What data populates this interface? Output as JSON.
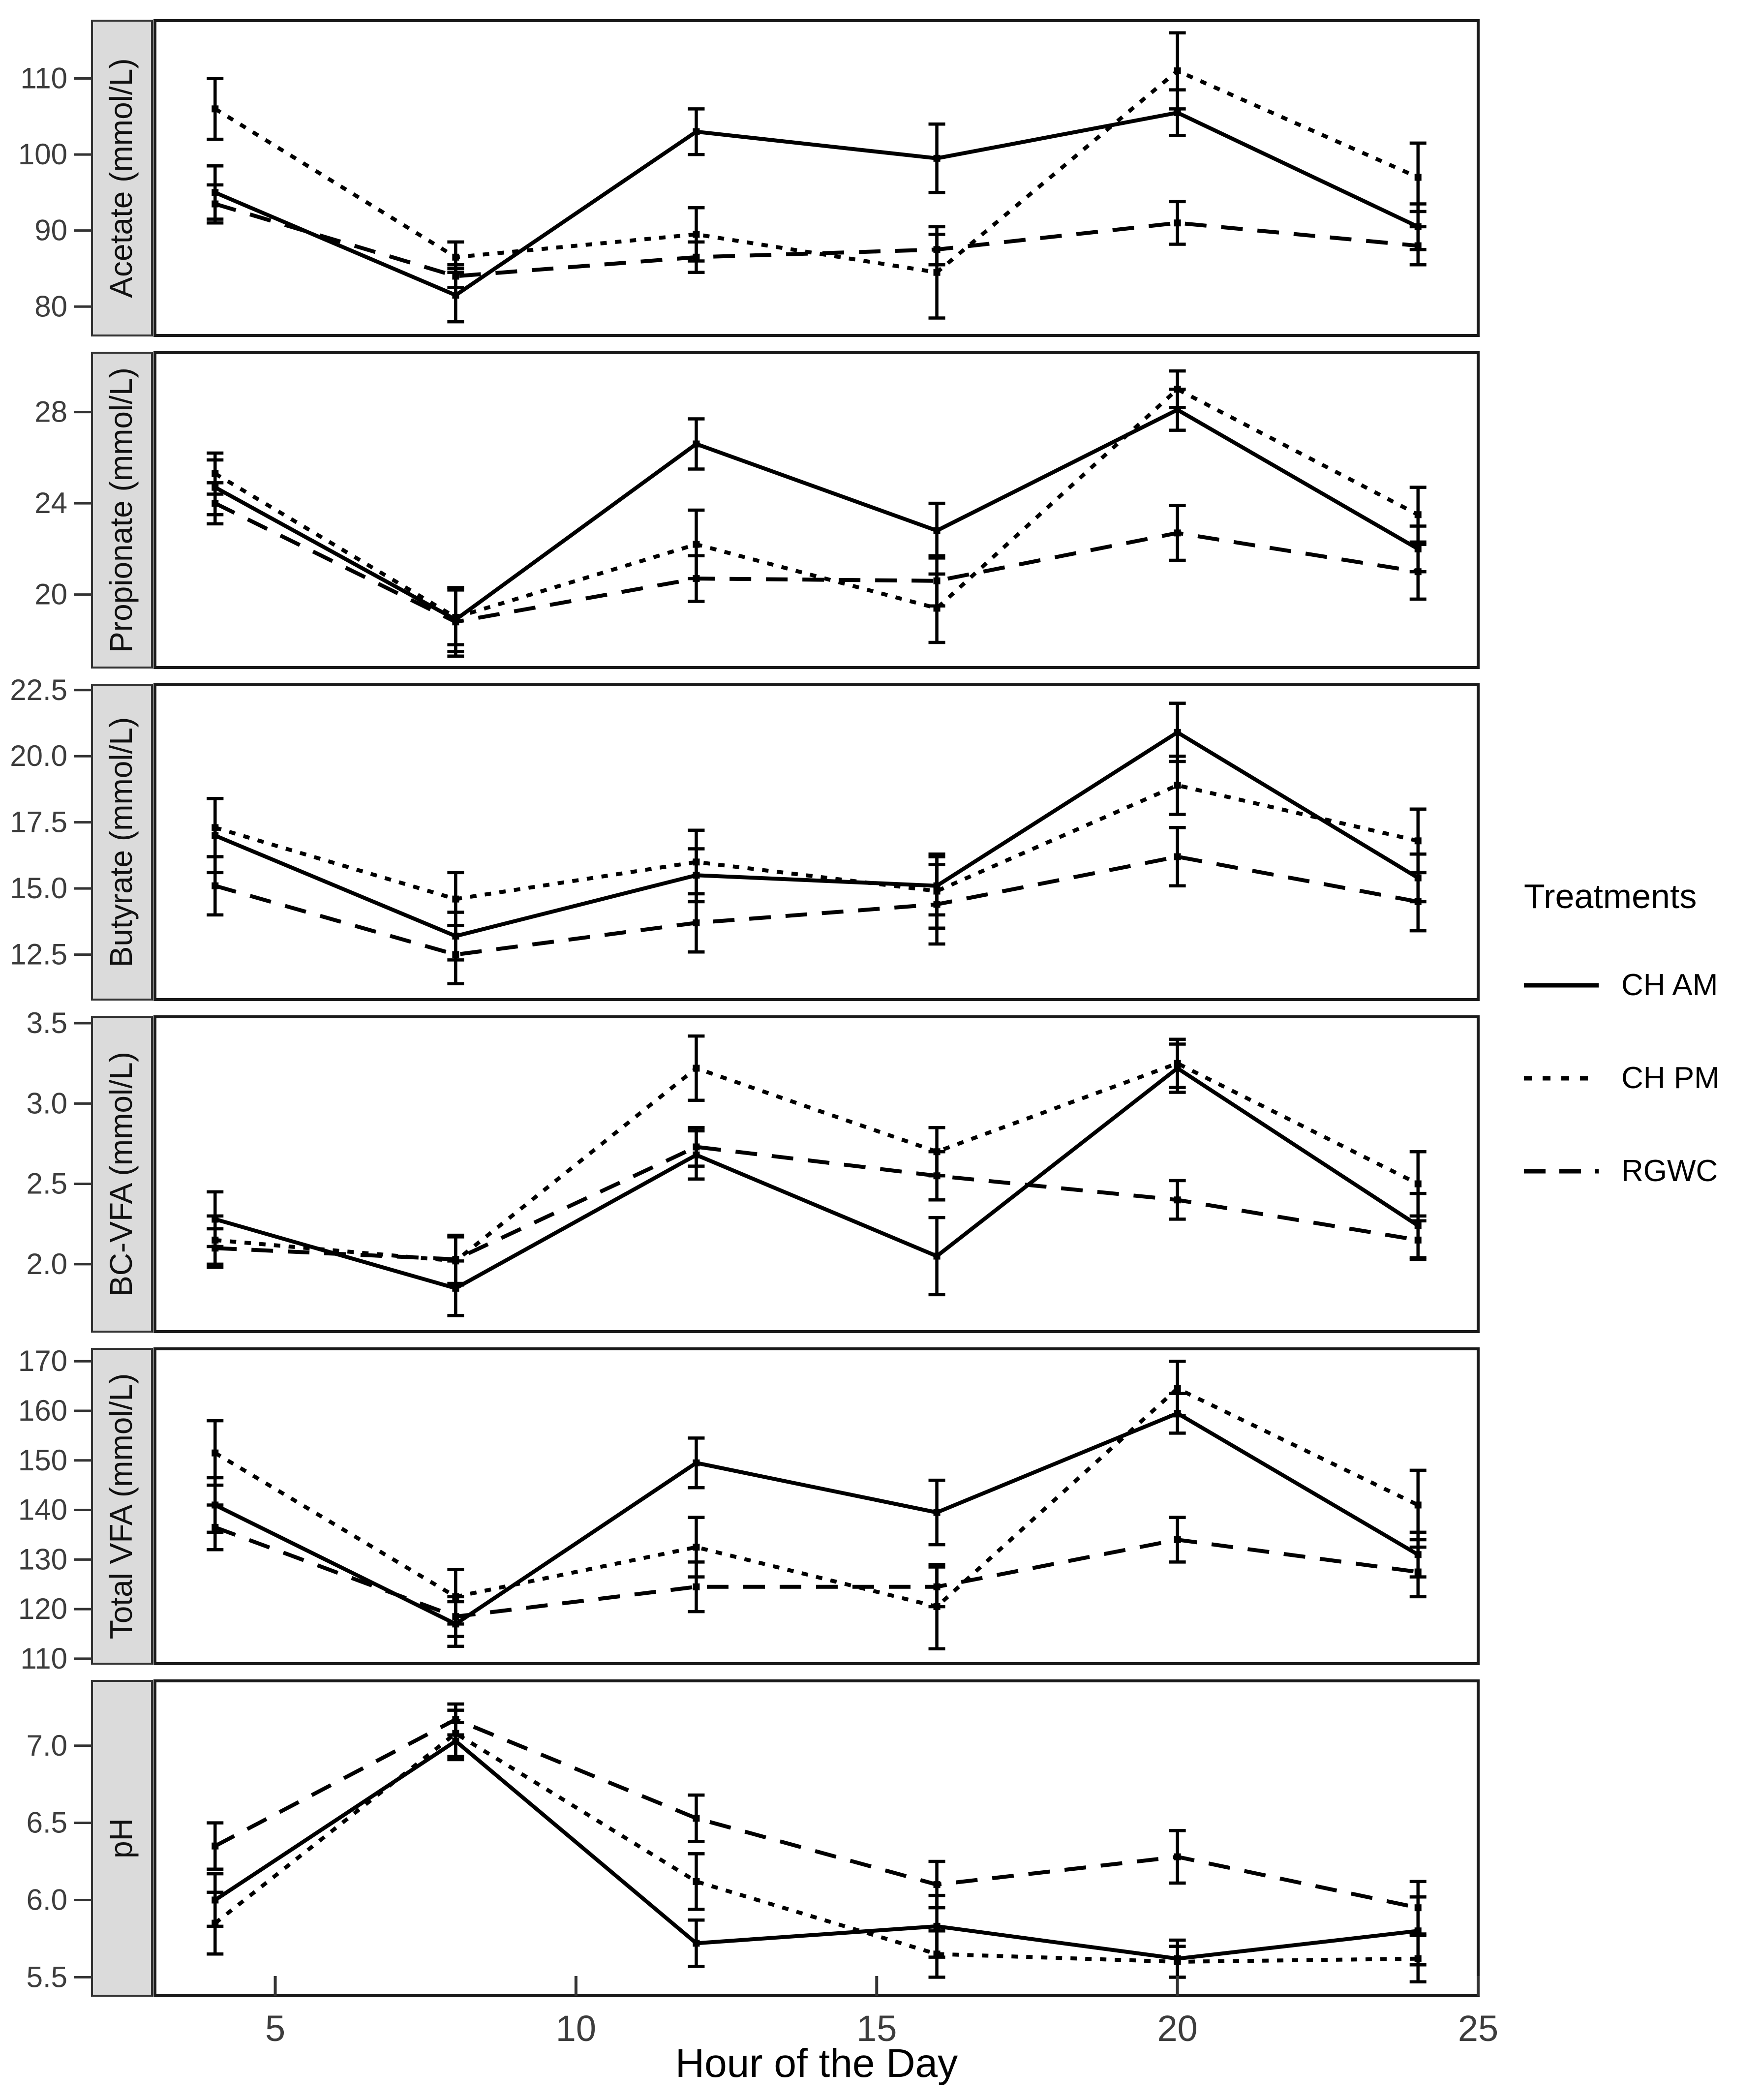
{
  "figure": {
    "xlabel": "Hour of the Day",
    "legend": {
      "title": "Treatments",
      "items": [
        {
          "label": "CH AM",
          "style": "solid"
        },
        {
          "label": "CH PM",
          "style": "dotted"
        },
        {
          "label": "RGWC",
          "style": "dashed"
        }
      ]
    },
    "colors": {
      "line": "#000000",
      "tick_text": "#3d3d3d",
      "strip_fill": "#dbdbdb",
      "strip_border": "#333333",
      "panel_border": "#1a1a1a",
      "background": "#ffffff"
    }
  },
  "chart_data": [
    {
      "type": "line",
      "facet_label": "Acetate (mmol/L)",
      "x": [
        4,
        8,
        12,
        16,
        20,
        24
      ],
      "xlim": [
        3,
        25
      ],
      "x_ticks": [
        5,
        10,
        15,
        20,
        25
      ],
      "x_tick_labels": [
        "5",
        "10",
        "15",
        "20",
        "25"
      ],
      "ylim": [
        76.2,
        117.6
      ],
      "y_ticks": [
        80,
        90,
        100,
        110
      ],
      "y_tick_labels": [
        "80",
        "90",
        "100",
        "110"
      ],
      "series": [
        {
          "name": "CH AM",
          "style": "solid",
          "values": [
            95.0,
            81.5,
            103.0,
            99.5,
            105.5,
            90.5
          ],
          "errors": [
            3.5,
            3.5,
            3.0,
            4.5,
            3.0,
            3.0
          ]
        },
        {
          "name": "CH PM",
          "style": "dotted",
          "values": [
            106.0,
            86.5,
            89.5,
            84.5,
            111.0,
            97.0
          ],
          "errors": [
            4.0,
            2.0,
            3.5,
            6.0,
            5.0,
            4.5
          ]
        },
        {
          "name": "RGWC",
          "style": "dashed",
          "values": [
            93.5,
            84.0,
            86.5,
            87.5,
            91.0,
            88.0
          ],
          "errors": [
            2.5,
            1.5,
            2.0,
            2.0,
            2.8,
            2.5
          ]
        }
      ]
    },
    {
      "type": "line",
      "facet_label": "Propionate (mmol/L)",
      "x": [
        4,
        8,
        12,
        16,
        20,
        24
      ],
      "xlim": [
        3,
        25
      ],
      "x_ticks": [
        5,
        10,
        15,
        20,
        25
      ],
      "x_tick_labels": [
        "5",
        "10",
        "15",
        "20",
        "25"
      ],
      "ylim": [
        16.8,
        30.6
      ],
      "y_ticks": [
        20,
        24,
        28
      ],
      "y_tick_labels": [
        "20",
        "24",
        "28"
      ],
      "series": [
        {
          "name": "CH AM",
          "style": "solid",
          "values": [
            24.7,
            18.9,
            26.6,
            22.8,
            28.1,
            22.0
          ],
          "errors": [
            1.2,
            1.4,
            1.1,
            1.2,
            0.9,
            1.0
          ]
        },
        {
          "name": "CH PM",
          "style": "dotted",
          "values": [
            25.3,
            19.0,
            22.2,
            19.4,
            29.0,
            23.5
          ],
          "errors": [
            0.9,
            1.2,
            1.5,
            1.5,
            0.8,
            1.2
          ]
        },
        {
          "name": "RGWC",
          "style": "dashed",
          "values": [
            24.0,
            18.8,
            20.7,
            20.6,
            22.7,
            21.0
          ],
          "errors": [
            0.9,
            1.5,
            1.0,
            1.1,
            1.2,
            1.2
          ]
        }
      ]
    },
    {
      "type": "line",
      "facet_label": "Butyrate (mmol/L)",
      "x": [
        4,
        8,
        12,
        16,
        20,
        24
      ],
      "xlim": [
        3,
        25
      ],
      "x_ticks": [
        5,
        10,
        15,
        20,
        25
      ],
      "x_tick_labels": [
        "5",
        "10",
        "15",
        "20",
        "25"
      ],
      "ylim": [
        10.8,
        22.7
      ],
      "y_ticks": [
        12.5,
        15.0,
        17.5,
        20.0,
        22.5
      ],
      "y_tick_labels": [
        "12.5",
        "15.0",
        "17.5",
        "20.0",
        "22.5"
      ],
      "series": [
        {
          "name": "CH AM",
          "style": "solid",
          "values": [
            17.0,
            13.2,
            15.5,
            15.1,
            20.9,
            15.4
          ],
          "errors": [
            1.4,
            0.9,
            1.0,
            1.1,
            1.1,
            0.9
          ]
        },
        {
          "name": "CH PM",
          "style": "dotted",
          "values": [
            17.3,
            14.6,
            16.0,
            14.9,
            18.9,
            16.8
          ],
          "errors": [
            1.1,
            1.0,
            1.2,
            1.4,
            1.1,
            1.2
          ]
        },
        {
          "name": "RGWC",
          "style": "dashed",
          "values": [
            15.1,
            12.5,
            13.7,
            14.4,
            16.2,
            14.5
          ],
          "errors": [
            1.1,
            1.1,
            1.1,
            1.5,
            1.1,
            1.1
          ]
        }
      ]
    },
    {
      "type": "line",
      "facet_label": "BC-VFA (mmol/L)",
      "x": [
        4,
        8,
        12,
        16,
        20,
        24
      ],
      "xlim": [
        3,
        25
      ],
      "x_ticks": [
        5,
        10,
        15,
        20,
        25
      ],
      "x_tick_labels": [
        "5",
        "10",
        "15",
        "20",
        "25"
      ],
      "ylim": [
        1.58,
        3.54
      ],
      "y_ticks": [
        2.0,
        2.5,
        3.0,
        3.5
      ],
      "y_tick_labels": [
        "2.0",
        "2.5",
        "3.0",
        "3.5"
      ],
      "series": [
        {
          "name": "CH AM",
          "style": "solid",
          "values": [
            2.28,
            1.85,
            2.68,
            2.05,
            3.22,
            2.24
          ],
          "errors": [
            0.17,
            0.17,
            0.15,
            0.24,
            0.15,
            0.2
          ]
        },
        {
          "name": "CH PM",
          "style": "dotted",
          "values": [
            2.15,
            2.02,
            3.22,
            2.7,
            3.25,
            2.5
          ],
          "errors": [
            0.15,
            0.15,
            0.2,
            0.15,
            0.15,
            0.2
          ]
        },
        {
          "name": "RGWC",
          "style": "dashed",
          "values": [
            2.1,
            2.03,
            2.73,
            2.55,
            2.4,
            2.15
          ],
          "errors": [
            0.12,
            0.15,
            0.12,
            0.15,
            0.12,
            0.12
          ]
        }
      ]
    },
    {
      "type": "line",
      "facet_label": "Total VFA (mmol/L)",
      "x": [
        4,
        8,
        12,
        16,
        20,
        24
      ],
      "xlim": [
        3,
        25
      ],
      "x_ticks": [
        5,
        10,
        15,
        20,
        25
      ],
      "x_tick_labels": [
        "5",
        "10",
        "15",
        "20",
        "25"
      ],
      "ylim": [
        109,
        172.5
      ],
      "y_ticks": [
        110,
        120,
        130,
        140,
        150,
        160,
        170
      ],
      "y_tick_labels": [
        "110",
        "120",
        "130",
        "140",
        "150",
        "160",
        "170"
      ],
      "series": [
        {
          "name": "CH AM",
          "style": "solid",
          "values": [
            141.0,
            117.0,
            149.5,
            139.5,
            159.5,
            131.0
          ],
          "errors": [
            5.5,
            4.5,
            5.0,
            6.5,
            4.0,
            4.5
          ]
        },
        {
          "name": "CH PM",
          "style": "dotted",
          "values": [
            151.5,
            122.5,
            132.5,
            120.5,
            164.5,
            141.0
          ],
          "errors": [
            6.5,
            5.5,
            6.0,
            8.5,
            5.5,
            7.0
          ]
        },
        {
          "name": "RGWC",
          "style": "dashed",
          "values": [
            136.5,
            118.5,
            124.5,
            124.5,
            134.0,
            127.5
          ],
          "errors": [
            4.5,
            4.0,
            5.0,
            4.0,
            4.5,
            5.0
          ]
        }
      ]
    },
    {
      "type": "line",
      "facet_label": "pH",
      "x": [
        4,
        8,
        12,
        16,
        20,
        24
      ],
      "xlim": [
        3,
        25
      ],
      "x_ticks": [
        5,
        10,
        15,
        20,
        25
      ],
      "x_tick_labels": [
        "5",
        "10",
        "15",
        "20",
        "25"
      ],
      "ylim": [
        5.38,
        7.42
      ],
      "y_ticks": [
        5.5,
        6.0,
        6.5,
        7.0
      ],
      "y_tick_labels": [
        "5.5",
        "6.0",
        "6.5",
        "7.0"
      ],
      "series": [
        {
          "name": "CH AM",
          "style": "solid",
          "values": [
            6.0,
            7.03,
            5.72,
            5.83,
            5.62,
            5.8
          ],
          "errors": [
            0.17,
            0.12,
            0.15,
            0.2,
            0.12,
            0.22
          ]
        },
        {
          "name": "CH PM",
          "style": "dotted",
          "values": [
            5.85,
            7.08,
            6.12,
            5.65,
            5.6,
            5.62
          ],
          "errors": [
            0.2,
            0.15,
            0.18,
            0.15,
            0.1,
            0.15
          ]
        },
        {
          "name": "RGWC",
          "style": "dashed",
          "values": [
            6.35,
            7.17,
            6.53,
            6.1,
            6.28,
            5.95
          ],
          "errors": [
            0.15,
            0.1,
            0.15,
            0.15,
            0.17,
            0.17
          ]
        }
      ]
    }
  ]
}
